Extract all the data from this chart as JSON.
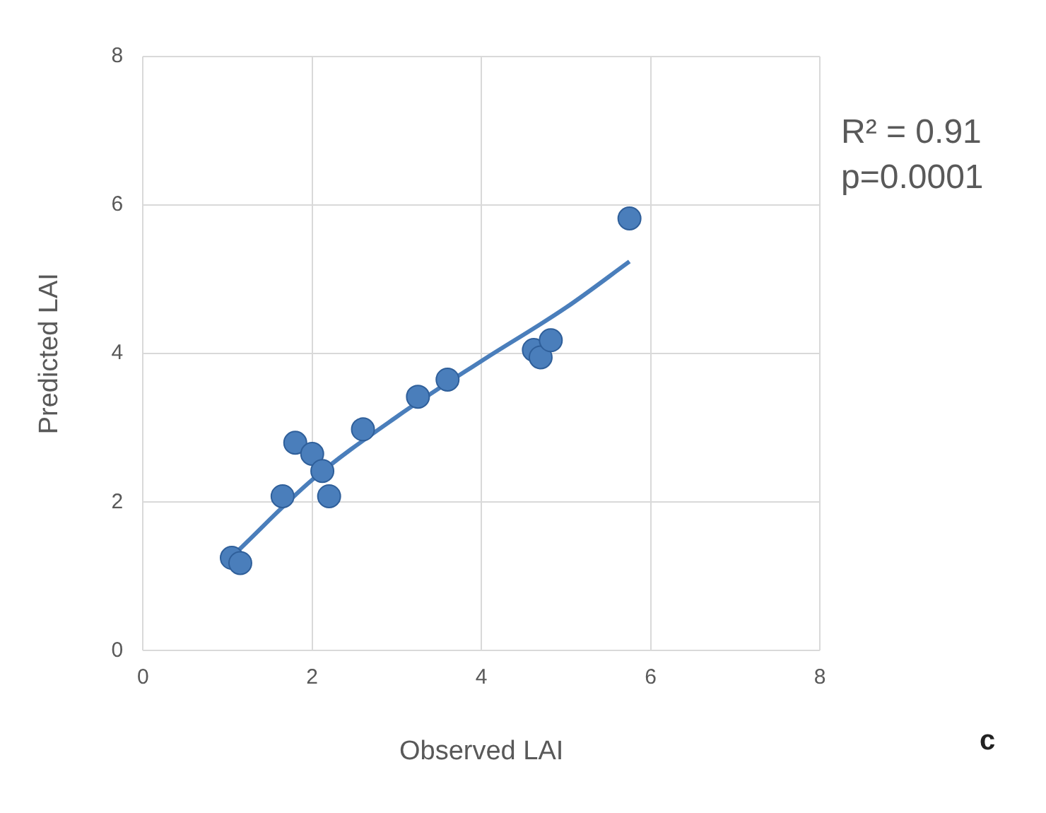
{
  "chart_data": {
    "type": "scatter",
    "xlabel": "Observed LAI",
    "ylabel": "Predicted LAI",
    "xlim": [
      0,
      8
    ],
    "ylim": [
      0,
      8
    ],
    "xticks": [
      0,
      2,
      4,
      6,
      8
    ],
    "yticks": [
      0,
      2,
      4,
      6,
      8
    ],
    "grid": true,
    "legend": false,
    "marker": "circle",
    "annotations": [
      "R² = 0.91",
      "p=0.0001",
      "c"
    ],
    "series": [
      {
        "type": "scatter",
        "color": "#4a7ebb",
        "x": [
          1.05,
          1.15,
          1.65,
          1.8,
          2.0,
          2.12,
          2.2,
          2.6,
          3.25,
          3.6,
          4.62,
          4.7,
          4.82,
          5.75
        ],
        "values": [
          1.25,
          1.18,
          2.08,
          2.8,
          2.65,
          2.42,
          2.08,
          2.98,
          3.42,
          3.65,
          4.05,
          3.95,
          4.18,
          5.82
        ]
      },
      {
        "type": "line",
        "marker": "none",
        "color": "#4a7ebb",
        "x": [
          1.1,
          2,
          3,
          4,
          5,
          5.75
        ],
        "values": [
          1.32,
          2.3,
          3.15,
          3.9,
          4.62,
          5.24
        ]
      }
    ]
  }
}
